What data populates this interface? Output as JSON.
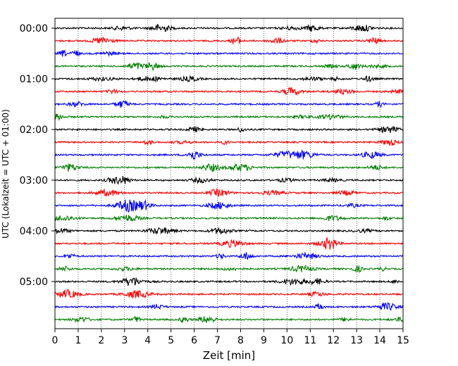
{
  "chart_data": {
    "type": "line",
    "title": "",
    "xlabel": "Zeit  [min]",
    "ylabel": "UTC (Lokalzeit = UTC + 01:00)",
    "xlim": [
      0,
      15
    ],
    "x_ticks": [
      "0",
      "1",
      "2",
      "3",
      "4",
      "5",
      "6",
      "7",
      "8",
      "9",
      "10",
      "11",
      "12",
      "13",
      "14",
      "15"
    ],
    "y_ticks": [
      "00:00",
      "01:00",
      "02:00",
      "03:00",
      "04:00",
      "05:00"
    ],
    "vertical_grid": "dotted",
    "trace_interval_minutes": 15,
    "trace_count": 24,
    "trace_colors": [
      "#000000",
      "#ff0000",
      "#0000ff",
      "#008000"
    ]
  }
}
